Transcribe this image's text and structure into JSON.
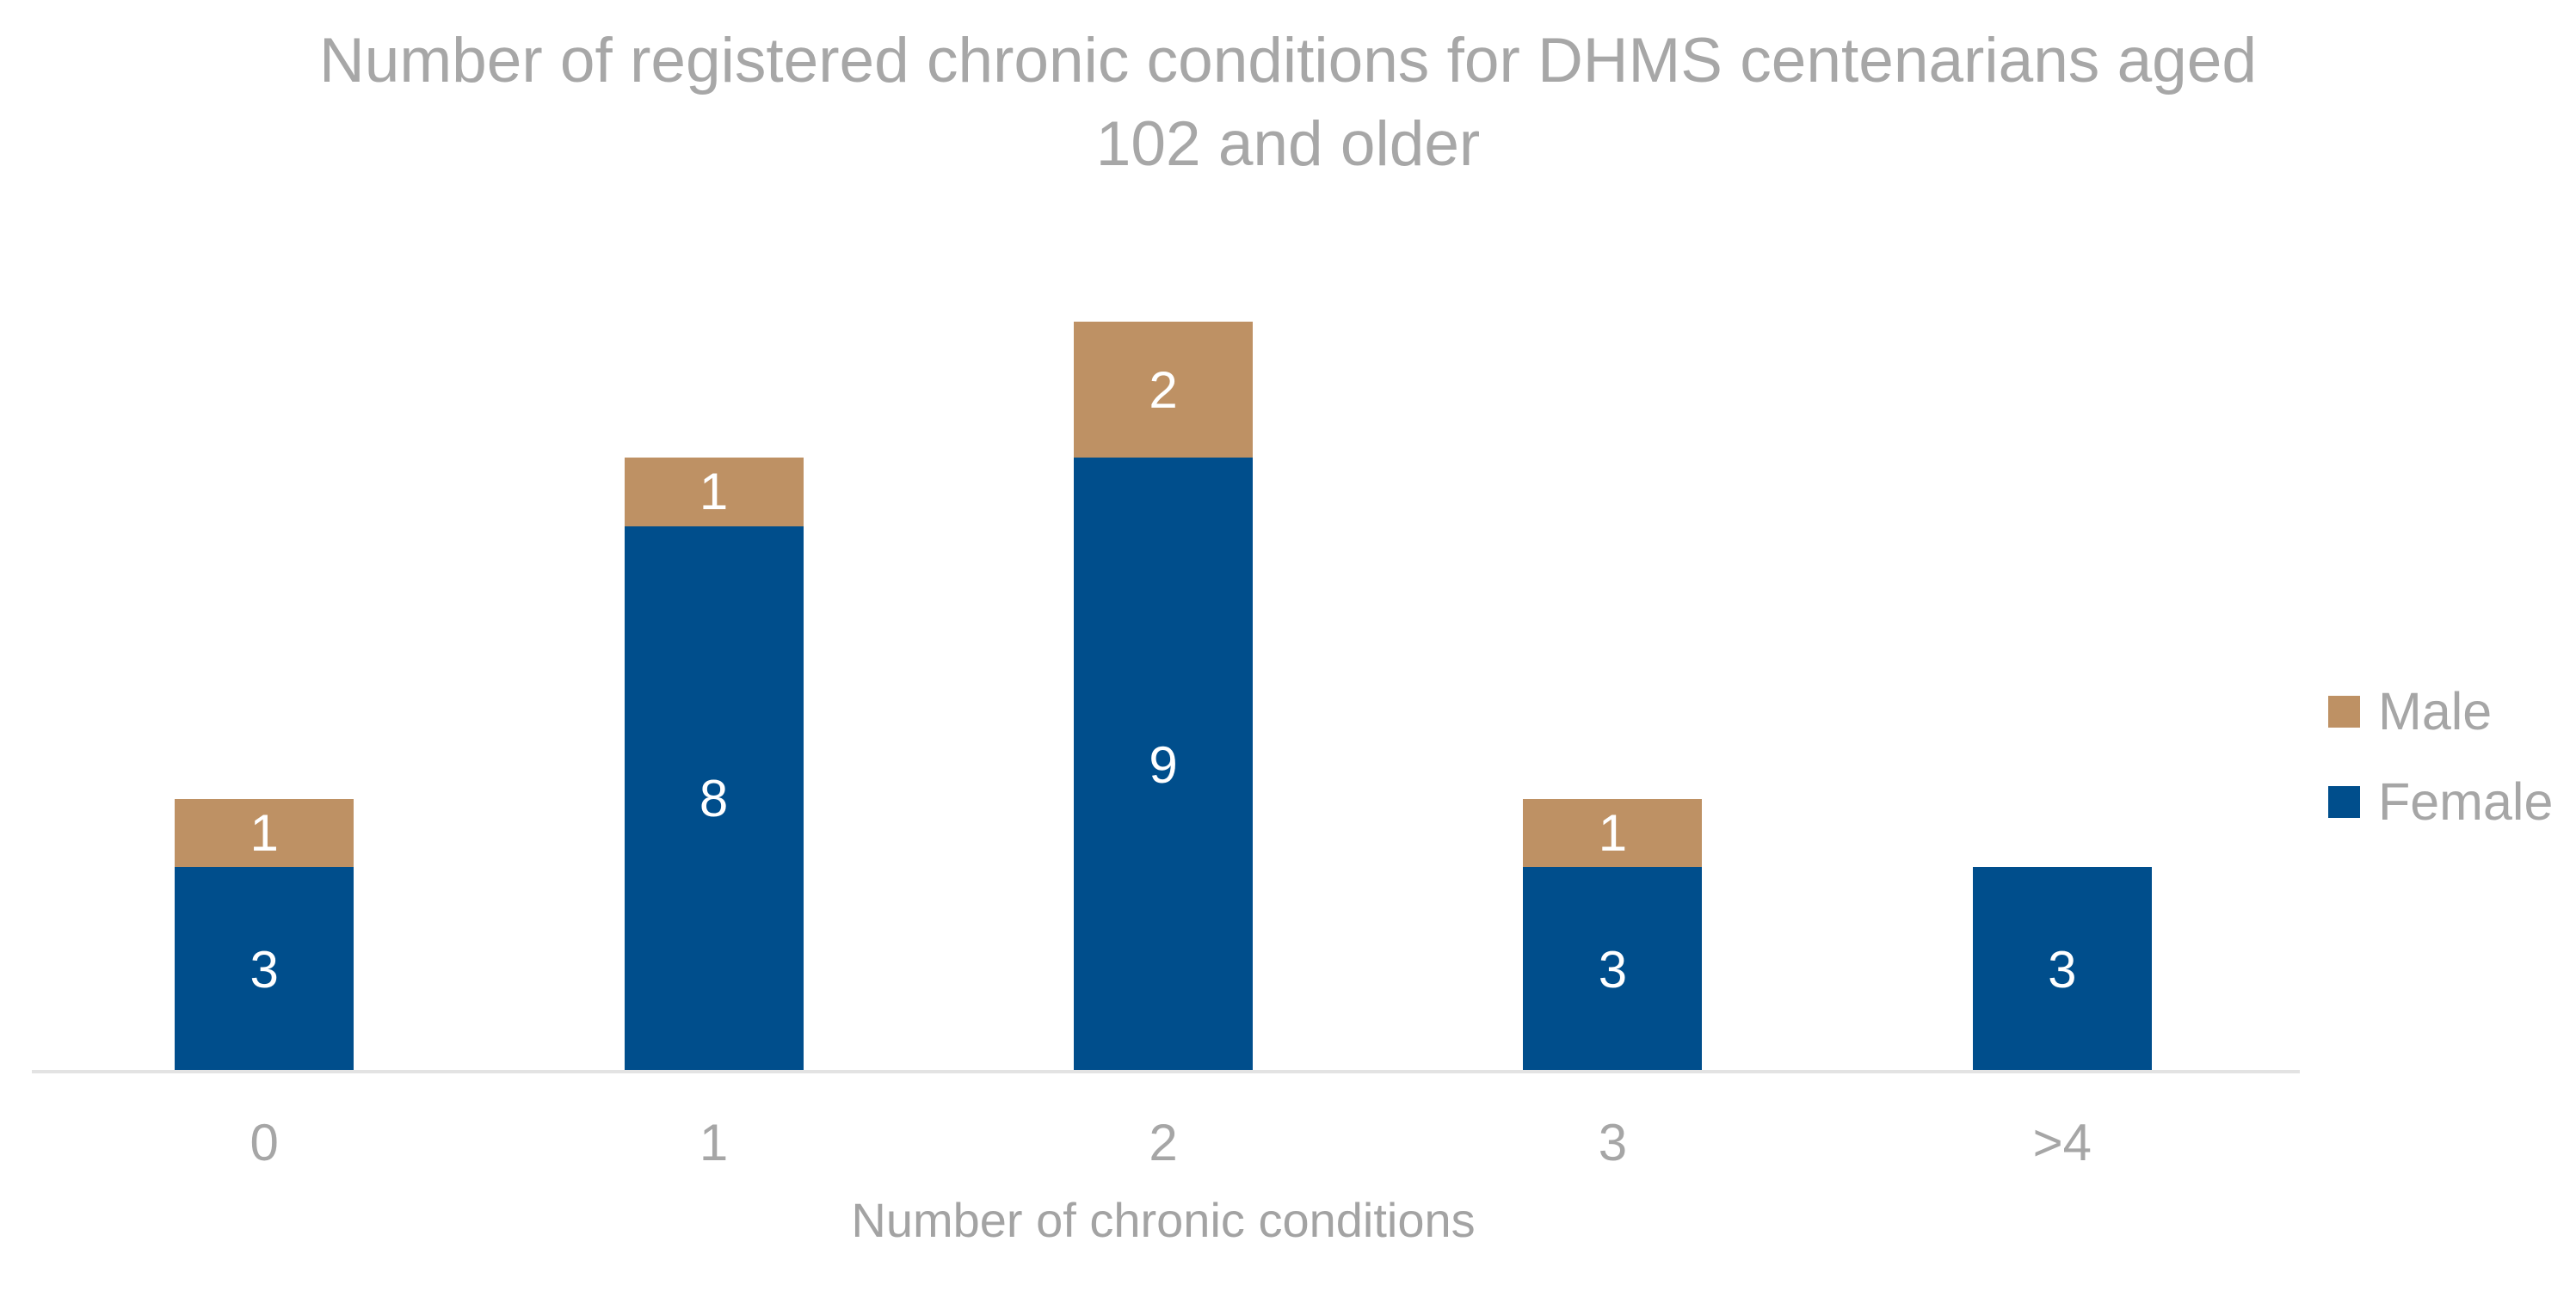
{
  "chart_data": {
    "type": "bar",
    "stacked": true,
    "title": "Number of registered chronic conditions for DHMS centenarians aged 102 and older",
    "title_lines": [
      "Number of registered chronic conditions for DHMS centenarians aged",
      "102 and older"
    ],
    "xlabel": "Number of chronic conditions",
    "ylabel": "",
    "categories": [
      "0",
      "1",
      "2",
      "3",
      ">4"
    ],
    "series": [
      {
        "name": "Female",
        "color": "#004E8C",
        "values": [
          3,
          8,
          9,
          3,
          3
        ]
      },
      {
        "name": "Male",
        "color": "#BE9164",
        "values": [
          1,
          1,
          2,
          1,
          0
        ]
      }
    ],
    "legend": {
      "position": "right",
      "order": [
        "Male",
        "Female"
      ]
    },
    "data_labels": {
      "visible": true,
      "color": "#FFFFFF"
    },
    "axes": {
      "y_axis_visible": false,
      "gridlines": false,
      "x_axis_line_color": "#E3E3E3"
    },
    "text_color": "#A6A6A6",
    "background": "#FFFFFF"
  }
}
